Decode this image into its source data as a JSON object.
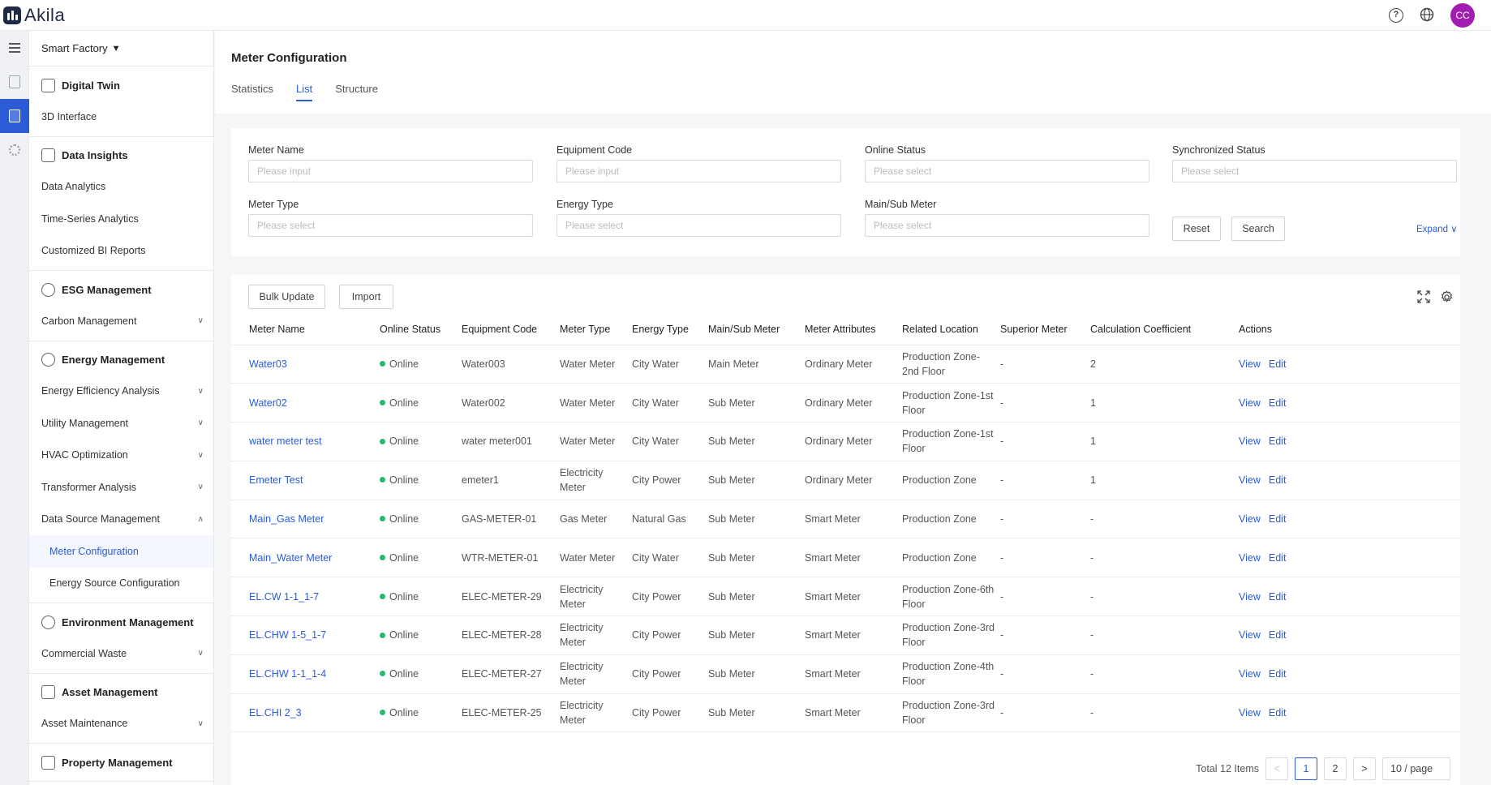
{
  "app": {
    "name": "Akila",
    "user_initials": "CC"
  },
  "topbar": {
    "help_glyph": "?",
    "help_icon": "help-circle-icon",
    "globe_icon": "globe-icon"
  },
  "sidebar": {
    "workspace": "Smart Factory",
    "groups": [
      {
        "title": "Digital Twin",
        "icon": "building-icon",
        "items": [
          {
            "label": "3D Interface"
          }
        ]
      },
      {
        "title": "Data Insights",
        "icon": "bar-chart-icon",
        "items": [
          {
            "label": "Data Analytics"
          },
          {
            "label": "Time-Series Analytics"
          },
          {
            "label": "Customized BI Reports"
          }
        ]
      },
      {
        "title": "ESG Management",
        "icon": "globe-leaf-icon",
        "items": [
          {
            "label": "Carbon Management"
          }
        ]
      },
      {
        "title": "Energy Management",
        "icon": "energy-icon",
        "items": [
          {
            "label": "Energy Efficiency Analysis"
          },
          {
            "label": "Utility Management"
          },
          {
            "label": "HVAC Optimization"
          },
          {
            "label": "Transformer Analysis"
          },
          {
            "label": "Data Source Management"
          }
        ],
        "sub_items": [
          {
            "label": "Meter Configuration"
          },
          {
            "label": "Energy Source Configuration"
          }
        ]
      },
      {
        "title": "Environment Management",
        "icon": "leaf-icon",
        "items": [
          {
            "label": "Commercial Waste"
          }
        ]
      },
      {
        "title": "Asset Management",
        "icon": "asset-icon",
        "items": [
          {
            "label": "Asset Maintenance"
          }
        ]
      },
      {
        "title": "Property Management",
        "icon": "property-icon",
        "items": []
      }
    ]
  },
  "page": {
    "title": "Meter Configuration",
    "tabs": [
      {
        "label": "Statistics"
      },
      {
        "label": "List"
      },
      {
        "label": "Structure"
      }
    ]
  },
  "filters": {
    "meter_name": {
      "label": "Meter Name",
      "placeholder": "Please input"
    },
    "equipment_code": {
      "label": "Equipment Code",
      "placeholder": "Please input"
    },
    "online_status": {
      "label": "Online Status",
      "placeholder": "Please select"
    },
    "synchronized_status": {
      "label": "Synchronized Status",
      "placeholder": "Please select"
    },
    "meter_type": {
      "label": "Meter Type",
      "placeholder": "Please select"
    },
    "energy_type": {
      "label": "Energy Type",
      "placeholder": "Please select"
    },
    "main_sub_meter": {
      "label": "Main/Sub Meter",
      "placeholder": "Please select"
    },
    "reset_label": "Reset",
    "search_label": "Search",
    "expand_label": "Expand ∨"
  },
  "toolbar": {
    "bulk_update_label": "Bulk Update",
    "import_label": "Import",
    "fullscreen_icon": "fullscreen-icon",
    "settings_icon": "gear-icon"
  },
  "table": {
    "columns": [
      "Meter Name",
      "Online Status",
      "Equipment Code",
      "Meter Type",
      "Energy Type",
      "Main/Sub Meter",
      "Meter Attributes",
      "Related Location",
      "Superior Meter",
      "Calculation Coefficient",
      "Actions"
    ],
    "rows": [
      [
        "Water03",
        "Online",
        "Water003",
        "Water Meter",
        "City Water",
        "Main Meter",
        "Ordinary Meter",
        "Production Zone-2nd Floor",
        "-",
        "2"
      ],
      [
        "Water02",
        "Online",
        "Water002",
        "Water Meter",
        "City Water",
        "Sub Meter",
        "Ordinary Meter",
        "Production Zone-1st Floor",
        "-",
        "1"
      ],
      [
        "water meter test",
        "Online",
        "water meter001",
        "Water Meter",
        "City Water",
        "Sub Meter",
        "Ordinary Meter",
        "Production Zone-1st Floor",
        "-",
        "1"
      ],
      [
        "Emeter Test",
        "Online",
        "emeter1",
        "Electricity Meter",
        "City Power",
        "Sub Meter",
        "Ordinary Meter",
        "Production Zone",
        "-",
        "1"
      ],
      [
        "Main_Gas Meter",
        "Online",
        "GAS-METER-01",
        "Gas Meter",
        "Natural Gas",
        "Sub Meter",
        "Smart Meter",
        "Production Zone",
        "-",
        "-"
      ],
      [
        "Main_Water Meter",
        "Online",
        "WTR-METER-01",
        "Water Meter",
        "City Water",
        "Sub Meter",
        "Smart Meter",
        "Production Zone",
        "-",
        "-"
      ],
      [
        "EL.CW 1-1_1-7",
        "Online",
        "ELEC-METER-29",
        "Electricity Meter",
        "City Power",
        "Sub Meter",
        "Smart Meter",
        "Production Zone-6th Floor",
        "-",
        "-"
      ],
      [
        "EL.CHW 1-5_1-7",
        "Online",
        "ELEC-METER-28",
        "Electricity Meter",
        "City Power",
        "Sub Meter",
        "Smart Meter",
        "Production Zone-3rd Floor",
        "-",
        "-"
      ],
      [
        "EL.CHW 1-1_1-4",
        "Online",
        "ELEC-METER-27",
        "Electricity Meter",
        "City Power",
        "Sub Meter",
        "Smart Meter",
        "Production Zone-4th Floor",
        "-",
        "-"
      ],
      [
        "EL.CHI 2_3",
        "Online",
        "ELEC-METER-25",
        "Electricity Meter",
        "City Power",
        "Sub Meter",
        "Smart Meter",
        "Production Zone-3rd Floor",
        "-",
        "-"
      ]
    ],
    "actions": {
      "view": "View",
      "edit": "Edit"
    }
  },
  "pagination": {
    "total_text": "Total 12 Items",
    "prev": "<",
    "next": ">",
    "pages": [
      "1",
      "2"
    ],
    "current_page": "1",
    "page_size": "10 / page"
  },
  "colors": {
    "accent": "#2b5cd6",
    "online": "#2bb673",
    "avatar": "#a21caf"
  }
}
